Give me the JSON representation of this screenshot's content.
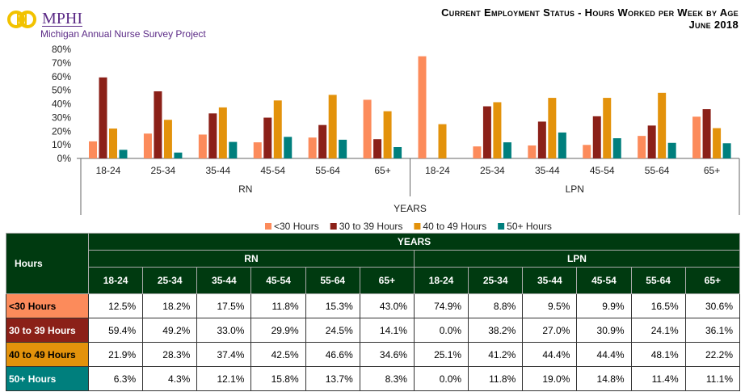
{
  "logo": {
    "name": "MPHI",
    "subtitle": "Michigan Annual Nurse Survey Project"
  },
  "title": {
    "line1": "Current Employment Status - Hours Worked per Week by Age",
    "line2": "June 2018"
  },
  "colors": {
    "lt30": "#fc8b5b",
    "h30_39": "#8b2018",
    "h40_49": "#e3920b",
    "h50": "#007f7d",
    "header": "#003a10"
  },
  "chart_data": {
    "type": "bar",
    "ylim": [
      0,
      80
    ],
    "yticks": [
      "0%",
      "10%",
      "20%",
      "30%",
      "40%",
      "50%",
      "60%",
      "70%",
      "80%"
    ],
    "xlabel": "YEARS",
    "groups": [
      "RN",
      "LPN"
    ],
    "categories": [
      "18-24",
      "25-34",
      "35-44",
      "45-54",
      "55-64",
      "65+"
    ],
    "legend_position": "bottom",
    "series": [
      {
        "name": "<30 Hours",
        "RN": [
          12.5,
          18.2,
          17.5,
          11.8,
          15.3,
          43.0
        ],
        "LPN": [
          74.9,
          8.8,
          9.5,
          9.9,
          16.5,
          30.6
        ]
      },
      {
        "name": "30 to 39 Hours",
        "RN": [
          59.4,
          49.2,
          33.0,
          29.9,
          24.5,
          14.1
        ],
        "LPN": [
          0.0,
          38.2,
          27.0,
          30.9,
          24.1,
          36.1
        ]
      },
      {
        "name": "40 to 49 Hours",
        "RN": [
          21.9,
          28.3,
          37.4,
          42.5,
          46.6,
          34.6
        ],
        "LPN": [
          25.1,
          41.2,
          44.4,
          44.4,
          48.1,
          22.2
        ]
      },
      {
        "name": "50+ Hours",
        "RN": [
          6.3,
          4.3,
          12.1,
          15.8,
          13.7,
          8.3
        ],
        "LPN": [
          0.0,
          11.8,
          19.0,
          14.8,
          11.4,
          11.1
        ]
      }
    ]
  },
  "table": {
    "corner": "Hours",
    "years": "YEARS"
  }
}
